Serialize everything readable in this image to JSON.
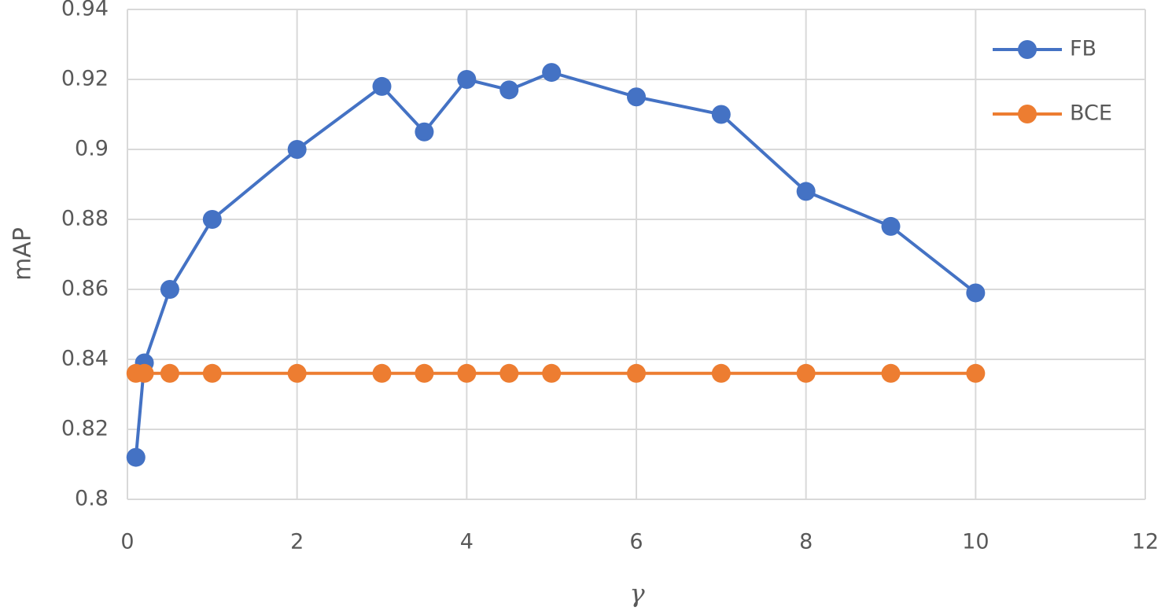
{
  "chart_data": {
    "type": "line",
    "x_label": "γ",
    "y_label": "mAP",
    "x": [
      0.1,
      0.2,
      0.5,
      1,
      2,
      3,
      3.5,
      4,
      4.5,
      5,
      6,
      7,
      8,
      9,
      10
    ],
    "series": [
      {
        "name": "FB",
        "color": "#4472c4",
        "values": [
          0.812,
          0.839,
          0.86,
          0.88,
          0.9,
          0.918,
          0.905,
          0.92,
          0.917,
          0.922,
          0.915,
          0.91,
          0.888,
          0.878,
          0.859
        ]
      },
      {
        "name": "BCE",
        "color": "#ed7d31",
        "values": [
          0.836,
          0.836,
          0.836,
          0.836,
          0.836,
          0.836,
          0.836,
          0.836,
          0.836,
          0.836,
          0.836,
          0.836,
          0.836,
          0.836,
          0.836
        ]
      }
    ],
    "xlim": [
      0,
      12
    ],
    "xticks": [
      0,
      2,
      4,
      6,
      8,
      10,
      12
    ],
    "ylim": [
      0.8,
      0.94
    ],
    "yticks": [
      0.8,
      0.82,
      0.84,
      0.86,
      0.88,
      0.9,
      0.92,
      0.94
    ],
    "grid": true,
    "legend": "top-right"
  }
}
